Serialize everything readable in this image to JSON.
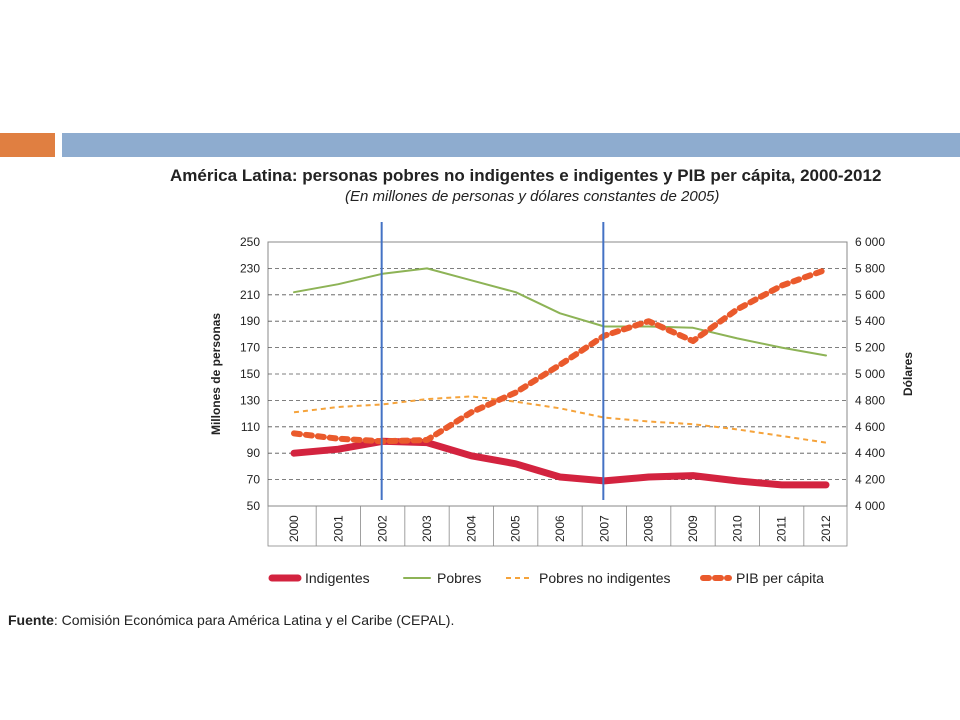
{
  "header": {
    "accent_color": "#e07f41",
    "bar_color": "#8eaccf"
  },
  "chart_data": {
    "type": "line",
    "title": "América Latina: personas pobres no indigentes e indigentes y PIB per cápita, 2000-2012",
    "subtitle": "(En millones de personas y dólares constantes de 2005)",
    "ylabel": "Millones de personas",
    "y2label": "Dólares",
    "ylim": [
      50,
      250
    ],
    "y2lim": [
      4000,
      6000
    ],
    "yticks": [
      "250",
      "230",
      "210",
      "190",
      "170",
      "150",
      "130",
      "110",
      "90",
      "70",
      "50"
    ],
    "y2ticks": [
      "6 000",
      "5 800",
      "5 600",
      "5 400",
      "5 200",
      "5 000",
      "4 800",
      "4 600",
      "4 400",
      "4 200",
      "4 000"
    ],
    "grid": true,
    "legend_position": "bottom",
    "categories": [
      "2000",
      "2001",
      "2002",
      "2003",
      "2004",
      "2005",
      "2006",
      "2007",
      "2008",
      "2009",
      "2010",
      "2011",
      "2012"
    ],
    "markers": [
      "2002",
      "2007"
    ],
    "series": [
      {
        "name": "Indigentes",
        "axis": "left",
        "color": "#d3233f",
        "style": "solid-thick",
        "values": [
          90,
          93,
          99,
          98,
          88,
          82,
          72,
          69,
          72,
          73,
          69,
          66,
          66
        ]
      },
      {
        "name": "Pobres",
        "axis": "left",
        "color": "#8db356",
        "style": "solid",
        "values": [
          212,
          218,
          226,
          230,
          221,
          212,
          196,
          186,
          186,
          185,
          177,
          170,
          164
        ]
      },
      {
        "name": "Pobres no indigentes",
        "axis": "left",
        "color": "#f5a33b",
        "style": "dashed",
        "values": [
          121,
          125,
          127,
          131,
          133,
          129,
          124,
          117,
          114,
          112,
          108,
          103,
          98
        ]
      },
      {
        "name": "PIB per cápita",
        "axis": "right",
        "color": "#ea5a2c",
        "style": "dotted-thick",
        "values": [
          4550,
          4510,
          4490,
          4500,
          4710,
          4860,
          5070,
          5290,
          5400,
          5250,
          5490,
          5670,
          5790
        ]
      }
    ]
  },
  "source": {
    "label": "Fuente",
    "text": ": Comisión Económica para América Latina y el Caribe (CEPAL)."
  }
}
